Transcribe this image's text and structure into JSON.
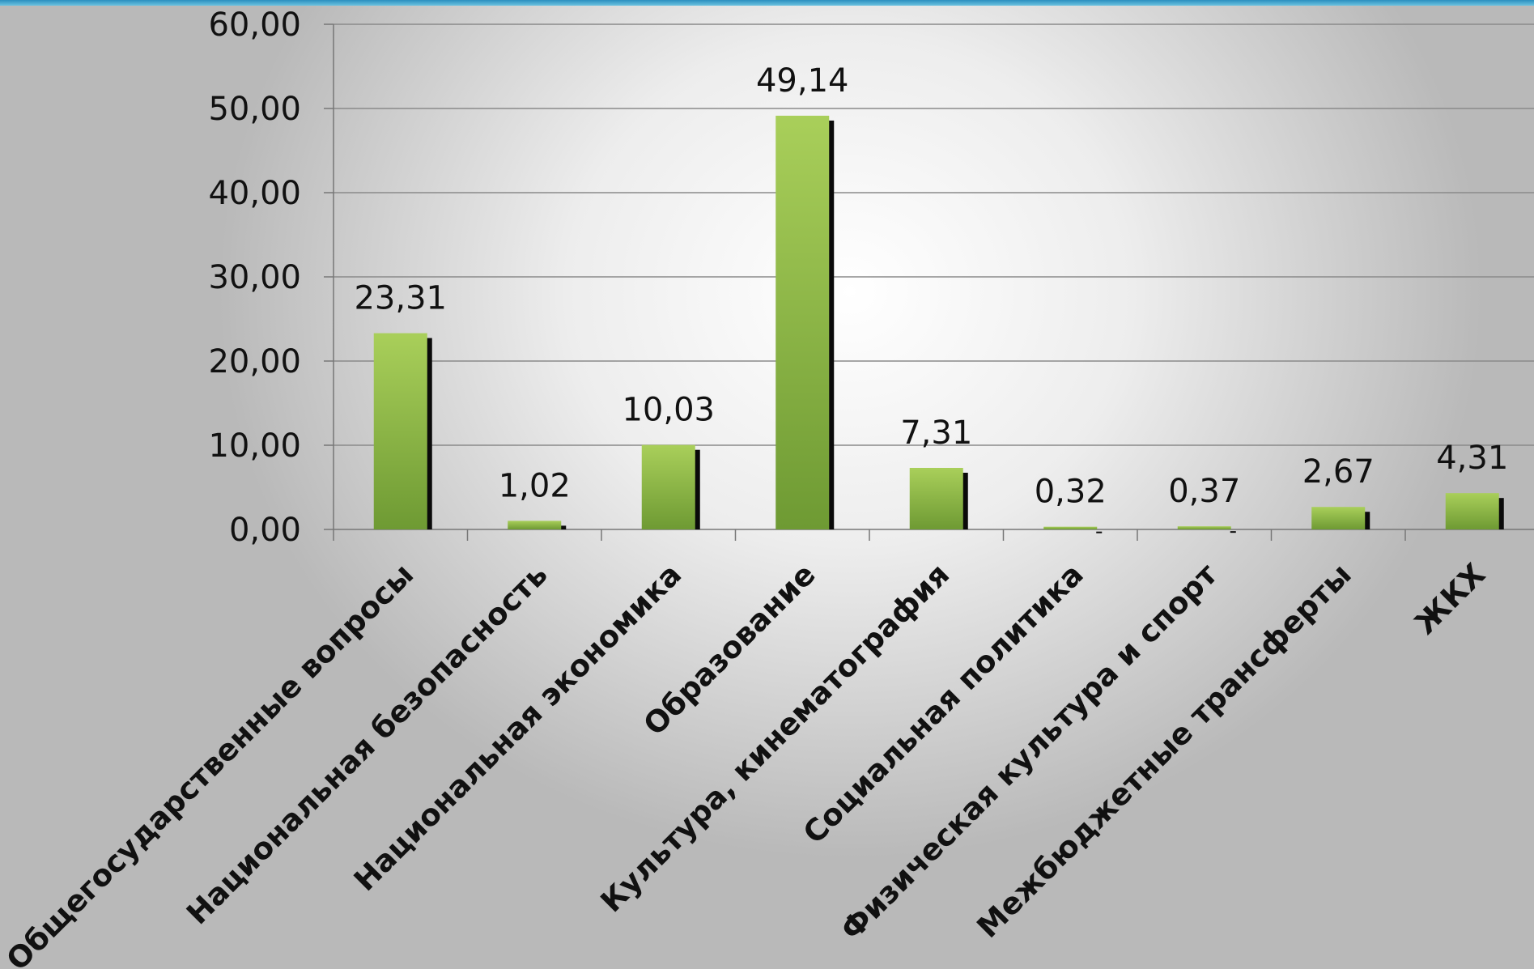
{
  "chart_data": {
    "type": "bar",
    "categories": [
      "Общегосударственные вопросы",
      "Национальная безопасность",
      "Национальная экономика",
      "Образование",
      "Культура, кинематография",
      "Социальная политика",
      "Физическая культура и спорт",
      "Межбюджетные трансферты",
      "ЖКХ"
    ],
    "values": [
      23.31,
      1.02,
      10.03,
      49.14,
      7.31,
      0.32,
      0.37,
      2.67,
      4.31
    ],
    "value_labels": [
      "23,31",
      "1,02",
      "10,03",
      "49,14",
      "7,31",
      "0,32",
      "0,37",
      "2,67",
      "4,31"
    ],
    "y_ticks": [
      0,
      10,
      20,
      30,
      40,
      50,
      60
    ],
    "y_tick_labels": [
      "0,00",
      "10,00",
      "20,00",
      "30,00",
      "40,00",
      "50,00",
      "60,00"
    ],
    "ylim": [
      0,
      60
    ],
    "grid": true,
    "legend": false,
    "colors": {
      "bar_top": "#a9cf5a",
      "bar_bottom": "#6e9a33",
      "shadow": "#0a0a0a",
      "grid": "#8a8a8a",
      "accent_band": "#2b8fbf"
    }
  }
}
